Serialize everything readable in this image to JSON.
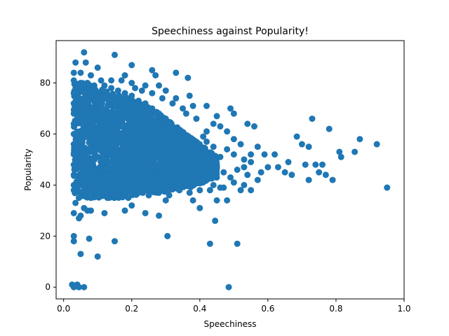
{
  "chart_data": {
    "type": "scatter",
    "title": "Speechiness against Popularity!",
    "xlabel": "Speechiness",
    "ylabel": "Popularity",
    "xlim": [
      -0.022,
      1.0
    ],
    "ylim": [
      -4.6,
      96.6
    ],
    "xticks": [
      0.0,
      0.2,
      0.4,
      0.6,
      0.8,
      1.0
    ],
    "xtick_labels": [
      "0.0",
      "0.2",
      "0.4",
      "0.6",
      "0.8",
      "1.0"
    ],
    "yticks": [
      0,
      20,
      40,
      60,
      80
    ],
    "ytick_labels": [
      "0",
      "20",
      "40",
      "60",
      "80"
    ],
    "grid": false,
    "legend": false,
    "marker_color": "#1f77b4",
    "series": [
      {
        "points": [
          [
            0.025,
            1
          ],
          [
            0.03,
            0
          ],
          [
            0.04,
            1
          ],
          [
            0.045,
            0
          ],
          [
            0.06,
            0
          ],
          [
            0.485,
            0
          ],
          [
            0.03,
            20
          ],
          [
            0.03,
            18
          ],
          [
            0.05,
            13
          ],
          [
            0.075,
            19
          ],
          [
            0.1,
            12
          ],
          [
            0.15,
            18
          ],
          [
            0.305,
            20
          ],
          [
            0.445,
            26
          ],
          [
            0.43,
            17
          ],
          [
            0.51,
            17
          ],
          [
            0.03,
            29
          ],
          [
            0.05,
            28
          ],
          [
            0.045,
            27
          ],
          [
            0.06,
            31
          ],
          [
            0.07,
            30
          ],
          [
            0.08,
            30
          ],
          [
            0.12,
            29
          ],
          [
            0.18,
            30
          ],
          [
            0.2,
            32
          ],
          [
            0.24,
            29
          ],
          [
            0.28,
            28
          ],
          [
            0.3,
            34
          ],
          [
            0.38,
            34
          ],
          [
            0.4,
            31
          ],
          [
            0.45,
            34
          ],
          [
            0.48,
            34
          ],
          [
            0.035,
            88
          ],
          [
            0.06,
            92
          ],
          [
            0.065,
            88
          ],
          [
            0.1,
            86
          ],
          [
            0.15,
            91
          ],
          [
            0.2,
            87
          ],
          [
            0.03,
            84
          ],
          [
            0.05,
            84
          ],
          [
            0.08,
            83
          ],
          [
            0.18,
            83
          ],
          [
            0.26,
            85
          ],
          [
            0.27,
            83
          ],
          [
            0.33,
            84
          ],
          [
            0.365,
            82
          ],
          [
            0.21,
            78
          ],
          [
            0.24,
            79
          ],
          [
            0.28,
            79
          ],
          [
            0.3,
            77
          ],
          [
            0.33,
            74
          ],
          [
            0.37,
            75
          ],
          [
            0.38,
            71
          ],
          [
            0.42,
            71
          ],
          [
            0.45,
            67
          ],
          [
            0.49,
            70
          ],
          [
            0.5,
            68
          ],
          [
            0.54,
            64
          ],
          [
            0.56,
            63
          ],
          [
            0.59,
            52
          ],
          [
            0.62,
            52
          ],
          [
            0.63,
            47
          ],
          [
            0.65,
            45
          ],
          [
            0.66,
            49
          ],
          [
            0.67,
            44
          ],
          [
            0.685,
            59
          ],
          [
            0.7,
            56
          ],
          [
            0.72,
            55
          ],
          [
            0.73,
            66
          ],
          [
            0.71,
            48
          ],
          [
            0.72,
            42
          ],
          [
            0.74,
            48
          ],
          [
            0.75,
            45
          ],
          [
            0.76,
            48
          ],
          [
            0.77,
            44
          ],
          [
            0.78,
            62
          ],
          [
            0.79,
            42
          ],
          [
            0.81,
            53
          ],
          [
            0.815,
            51
          ],
          [
            0.855,
            53
          ],
          [
            0.87,
            58
          ],
          [
            0.92,
            56
          ],
          [
            0.95,
            39
          ],
          [
            0.55,
            38
          ],
          [
            0.58,
            45
          ],
          [
            0.6,
            47
          ],
          [
            0.53,
            40
          ],
          [
            0.52,
            38
          ],
          [
            0.5,
            41
          ],
          [
            0.47,
            39
          ],
          [
            0.44,
            40
          ],
          [
            0.57,
            55
          ],
          [
            0.55,
            52
          ],
          [
            0.53,
            50
          ],
          [
            0.52,
            56
          ],
          [
            0.5,
            58
          ],
          [
            0.48,
            61
          ],
          [
            0.46,
            63
          ],
          [
            0.44,
            64
          ],
          [
            0.42,
            61
          ],
          [
            0.41,
            59
          ],
          [
            0.39,
            66
          ],
          [
            0.36,
            68
          ],
          [
            0.35,
            70
          ],
          [
            0.32,
            72
          ],
          [
            0.29,
            74
          ],
          [
            0.26,
            76
          ],
          [
            0.23,
            77
          ],
          [
            0.2,
            80
          ],
          [
            0.17,
            81
          ],
          [
            0.14,
            81
          ],
          [
            0.11,
            81
          ],
          [
            0.09,
            79
          ],
          [
            0.07,
            80
          ],
          [
            0.05,
            80
          ],
          [
            0.03,
            81
          ],
          [
            0.035,
            33
          ],
          [
            0.045,
            35
          ],
          [
            0.06,
            36
          ],
          [
            0.08,
            35
          ],
          [
            0.1,
            36
          ],
          [
            0.13,
            35
          ],
          [
            0.16,
            36
          ],
          [
            0.19,
            35
          ],
          [
            0.22,
            37
          ],
          [
            0.25,
            36
          ],
          [
            0.28,
            37
          ],
          [
            0.31,
            36
          ],
          [
            0.34,
            38
          ],
          [
            0.37,
            37
          ],
          [
            0.4,
            38
          ],
          [
            0.43,
            38
          ],
          [
            0.46,
            39
          ],
          [
            0.03,
            76
          ],
          [
            0.03,
            72
          ],
          [
            0.03,
            68
          ],
          [
            0.03,
            64
          ],
          [
            0.03,
            60
          ],
          [
            0.03,
            56
          ],
          [
            0.03,
            52
          ],
          [
            0.03,
            48
          ],
          [
            0.03,
            44
          ],
          [
            0.03,
            40
          ],
          [
            0.03,
            38
          ],
          [
            0.57,
            42
          ],
          [
            0.54,
            44
          ],
          [
            0.51,
            46
          ],
          [
            0.49,
            43
          ],
          [
            0.47,
            45
          ],
          [
            0.45,
            47
          ],
          [
            0.43,
            49
          ],
          [
            0.41,
            46
          ],
          [
            0.39,
            44
          ],
          [
            0.37,
            48
          ],
          [
            0.35,
            50
          ],
          [
            0.33,
            47
          ],
          [
            0.55,
            49
          ],
          [
            0.53,
            47
          ],
          [
            0.5,
            52
          ],
          [
            0.48,
            54
          ],
          [
            0.46,
            51
          ],
          [
            0.44,
            55
          ],
          [
            0.42,
            57
          ],
          [
            0.4,
            53
          ],
          [
            0.38,
            56
          ],
          [
            0.36,
            59
          ],
          [
            0.34,
            61
          ],
          [
            0.32,
            63
          ],
          [
            0.3,
            66
          ],
          [
            0.28,
            68
          ],
          [
            0.26,
            70
          ],
          [
            0.24,
            72
          ],
          [
            0.22,
            73
          ],
          [
            0.2,
            75
          ],
          [
            0.18,
            76
          ],
          [
            0.16,
            77
          ],
          [
            0.14,
            78
          ],
          [
            0.12,
            79
          ]
        ]
      }
    ],
    "dense_cloud": [
      {
        "x": 0.03,
        "y_low": 37,
        "y_high": 80
      },
      {
        "x": 0.05,
        "y_low": 36,
        "y_high": 80
      },
      {
        "x": 0.07,
        "y_low": 35,
        "y_high": 80
      },
      {
        "x": 0.09,
        "y_low": 35,
        "y_high": 79
      },
      {
        "x": 0.11,
        "y_low": 35,
        "y_high": 78
      },
      {
        "x": 0.13,
        "y_low": 35,
        "y_high": 77
      },
      {
        "x": 0.15,
        "y_low": 35,
        "y_high": 76
      },
      {
        "x": 0.17,
        "y_low": 35,
        "y_high": 75
      },
      {
        "x": 0.19,
        "y_low": 36,
        "y_high": 74
      },
      {
        "x": 0.21,
        "y_low": 36,
        "y_high": 73
      },
      {
        "x": 0.23,
        "y_low": 36,
        "y_high": 72
      },
      {
        "x": 0.25,
        "y_low": 37,
        "y_high": 71
      },
      {
        "x": 0.27,
        "y_low": 37,
        "y_high": 69
      },
      {
        "x": 0.29,
        "y_low": 37,
        "y_high": 67
      },
      {
        "x": 0.31,
        "y_low": 38,
        "y_high": 65
      },
      {
        "x": 0.33,
        "y_low": 38,
        "y_high": 63
      },
      {
        "x": 0.35,
        "y_low": 39,
        "y_high": 61
      },
      {
        "x": 0.37,
        "y_low": 39,
        "y_high": 59
      },
      {
        "x": 0.39,
        "y_low": 40,
        "y_high": 57
      },
      {
        "x": 0.41,
        "y_low": 41,
        "y_high": 55
      },
      {
        "x": 0.43,
        "y_low": 42,
        "y_high": 53
      },
      {
        "x": 0.45,
        "y_low": 43,
        "y_high": 51
      }
    ]
  }
}
